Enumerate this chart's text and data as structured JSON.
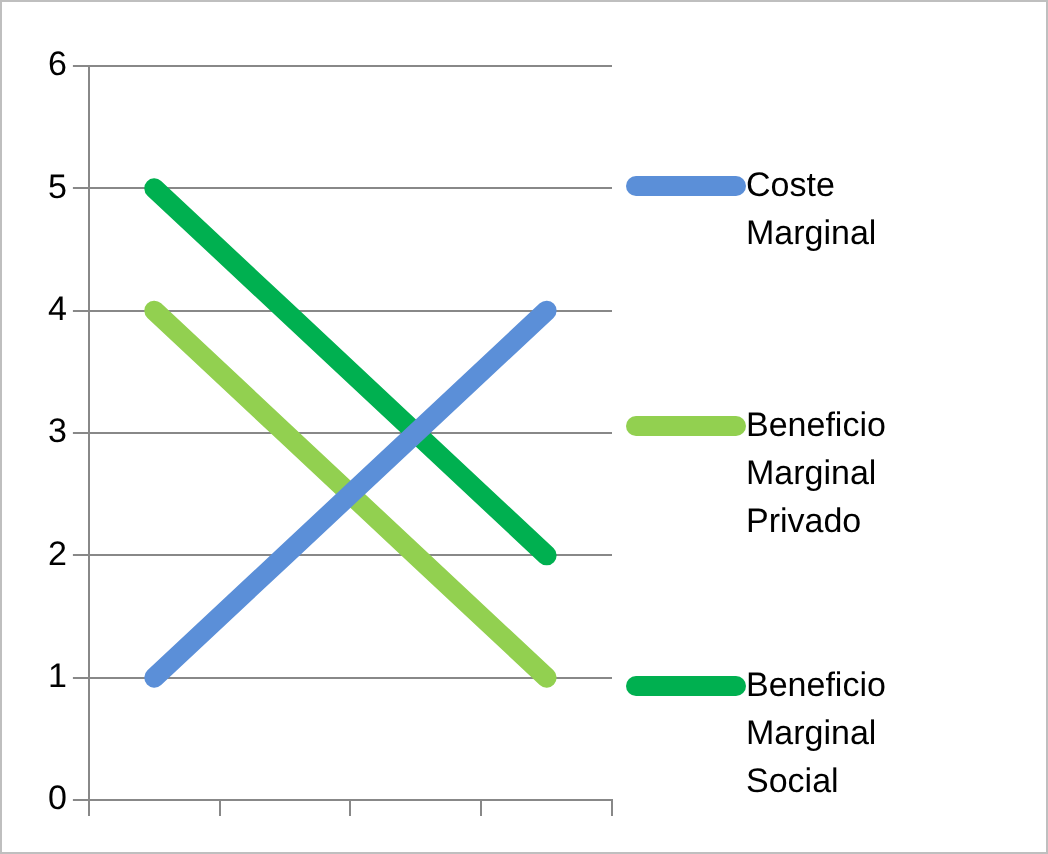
{
  "chart_data": {
    "type": "line",
    "categories": [
      null,
      null,
      null,
      null
    ],
    "series": [
      {
        "name": "Coste Marginal",
        "color": "#5b8fd8",
        "values": [
          1,
          2,
          3,
          4
        ]
      },
      {
        "name": "Beneficio Marginal Privado",
        "color": "#92d050",
        "values": [
          4,
          3,
          2,
          1
        ]
      },
      {
        "name": "Beneficio Marginal Social",
        "color": "#00b050",
        "values": [
          5,
          4,
          3,
          2
        ]
      }
    ],
    "ylim": [
      0,
      6
    ],
    "yticks": [
      0,
      1,
      2,
      3,
      4,
      5,
      6
    ],
    "grid": "y",
    "legend": "right",
    "tick_labels": "y",
    "marker": "none",
    "line_style": "solid"
  }
}
